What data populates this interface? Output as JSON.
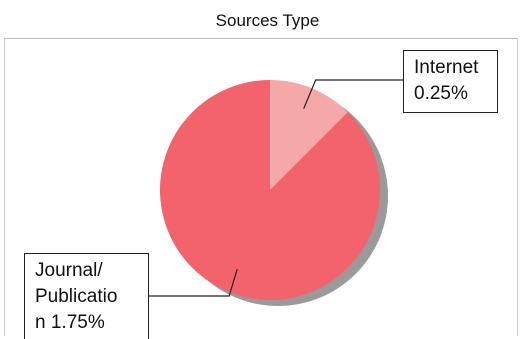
{
  "chart_data": {
    "type": "pie",
    "title": "Sources Type",
    "slices": [
      {
        "label": "Internet",
        "value": 0.25,
        "value_text": "0.25%",
        "color": "#f4a8a8"
      },
      {
        "label": "Journal/\nPublicatio\nn",
        "value": 1.75,
        "value_text": "1.75%",
        "color": "#f2636b"
      }
    ],
    "shadow_color": "#9a9a9a",
    "legend": "none",
    "grid": false
  }
}
